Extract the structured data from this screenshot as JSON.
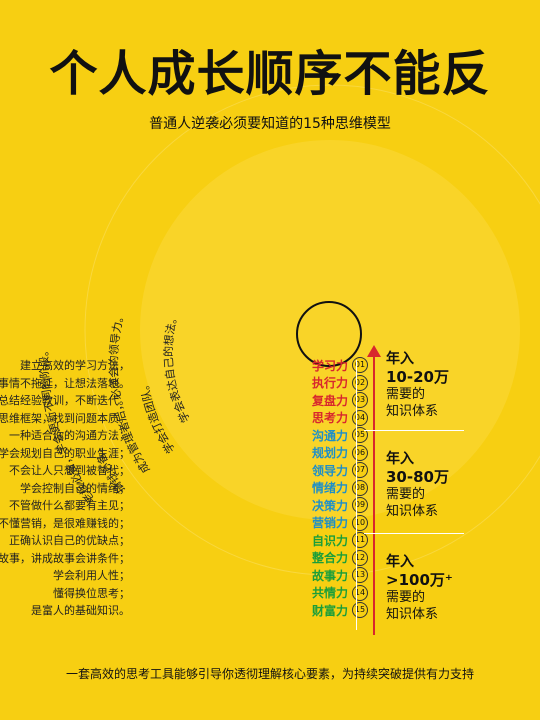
{
  "header": {
    "title": "个人成长顺序不能反",
    "subtitle": "普通人逆袭必须要知道的15种思维模型"
  },
  "footer": {
    "text": "一套高效的思考工具能够引导你透彻理解核心要素，为持续突破提供有力支持"
  },
  "skills": [
    {
      "num": "01",
      "label": "学习力",
      "desc": "建立高效的学习方法，",
      "color": "#d8272d"
    },
    {
      "num": "02",
      "label": "执行力",
      "desc": "做事情不拖延，让想法落地。",
      "color": "#d8272d"
    },
    {
      "num": "03",
      "label": "复盘力",
      "desc": "总结经验教训，不断迭代。",
      "color": "#d8272d"
    },
    {
      "num": "04",
      "label": "思考力",
      "desc": "构建思维框架，找到问题本质。",
      "color": "#d8272d"
    },
    {
      "num": "05",
      "label": "沟通力",
      "desc": "一种适合你的沟通方法；",
      "color": "#1e8fc8"
    },
    {
      "num": "06",
      "label": "规划力",
      "desc": "得要学会规划自己的职业生涯；",
      "color": "#1e8fc8"
    },
    {
      "num": "07",
      "label": "领导力",
      "desc": "不会让人只想到被替代；",
      "color": "#1e8fc8"
    },
    {
      "num": "08",
      "label": "情绪力",
      "desc": "学会控制自己的情绪；",
      "color": "#1e8fc8"
    },
    {
      "num": "09",
      "label": "决策力",
      "desc": "不管做什么都要有主见；",
      "color": "#1e8fc8"
    },
    {
      "num": "10",
      "label": "营销力",
      "desc": "不懂营销，是很难赚钱的；",
      "color": "#1e8fc8"
    },
    {
      "num": "11",
      "label": "自识力",
      "desc": "正确认识自己的优缺点；",
      "color": "#1a9e3a"
    },
    {
      "num": "12",
      "label": "整合力",
      "desc": "讲故事，讲成故事会讲条件；",
      "color": "#1a9e3a"
    },
    {
      "num": "13",
      "label": "故事力",
      "desc": "学会利用人性；",
      "color": "#1a9e3a"
    },
    {
      "num": "14",
      "label": "共情力",
      "desc": "懂得换位思考；",
      "color": "#1a9e3a"
    },
    {
      "num": "15",
      "label": "财富力",
      "desc": "是富人的基础知识。",
      "color": "#1a9e3a"
    }
  ],
  "tiers": [
    {
      "t1": "年入",
      "t2": "10-20万",
      "t3": "需要的",
      "t4": "知识体系"
    },
    {
      "t1": "年入",
      "t2": "30-80万",
      "t3": "需要的",
      "t4": "知识体系"
    },
    {
      "t1": "年入",
      "t2": ">100万⁺",
      "t3": "需要的",
      "t4": "知识体系"
    }
  ],
  "arcs": [
    "学会打造团队。",
    "成为管理者后，必须会的领导力。",
    "搞钱必备。",
    "老板必备，学会更新不同的阶段。",
    "学会表达自己的想法。"
  ],
  "colors": {
    "background": "#f7cf12",
    "accent_red": "#d8272d",
    "accent_blue": "#1e8fc8",
    "accent_green": "#1a9e3a"
  }
}
